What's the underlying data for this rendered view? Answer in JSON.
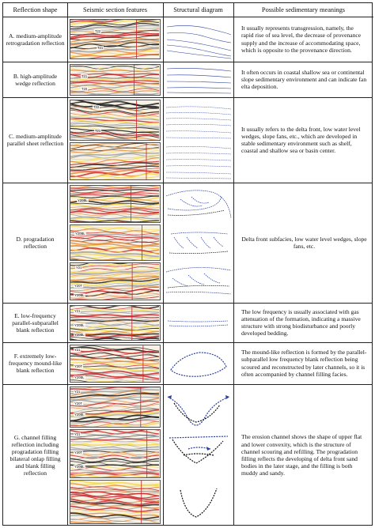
{
  "headers": {
    "shape": "Reflection shape",
    "seismic": "Seismic section features",
    "structural": "Structural diagram",
    "meaning": "Possible sedimentary meanings"
  },
  "rows": [
    {
      "shape": "A. medium-amplitude retrogradation reflection",
      "meaning": "It usually represents transgression, namely, the rapid rise of sea level, the decrease of provenance supply and the increase of accommodating space, which is opposite to the provenance direction.",
      "labels": [
        "T22",
        "T21"
      ]
    },
    {
      "shape": "B. high-amplitude wedge reflection",
      "meaning": "It often occurs in coastal shallow sea or continental slope sedimentary environment and can indicate fan elta deposition.",
      "labels": [
        "T21",
        "T20"
      ]
    },
    {
      "shape": "C. medium-amplitude parallel sheet reflection",
      "meaning": "It usually refers to the delta front, low water level wedges, slope fans, etc., which are developed in stable sedimentary environment such as shelf, coastal and shallow sea or basin center.",
      "labels": [
        "T22",
        "T21"
      ]
    },
    {
      "shape": "D. progradation reflection",
      "meaning": "Delta front subfacies, low water level wedges, slope fans, etc.",
      "labels": [
        "Y20BL",
        "Y20BL",
        "Y21",
        "Y20T",
        "Y20BL"
      ]
    },
    {
      "shape": "E. low-frequency parallel-subparallel blank reflection",
      "meaning": "The low frequency is usually associated with gas attenuation of the formation, indicating a massive structure with strong biodisturbance and poorly developed bedding.",
      "labels": [
        "Y21",
        "Y20BL",
        "Y20BL"
      ]
    },
    {
      "shape": "F. extremely low-frequency mound-like blank reflection",
      "meaning": "The mound-like reflection is formed by the parallel-subparallel low frequency blank reflection being scoured and reconstructed by later channels, so it is often accompanied by channel filling facies.",
      "labels": [
        "Y21",
        "Y20T",
        "Y20BL"
      ]
    },
    {
      "shape": "G. channel filling reflection including progradation filling bilateral onlap filling and blank filling reflection",
      "meaning": "The erosion channel shows the shape of upper flat and lower convexity, which is the structure of channel scouring and refilling. The progradation filling reflects the developing of delta front sand bodies in the later stage, and the filling is both muddy and sandy.",
      "labels": [
        "Y21",
        "Y20T",
        "Y20BL",
        "Y21",
        "Y20T",
        "Y20BL"
      ]
    }
  ],
  "colors": {
    "seis_red": "#c8242a",
    "seis_yellow": "#f2d94a",
    "seis_black": "#1a1a1a",
    "diagram_blue": "#2a3e9c"
  }
}
